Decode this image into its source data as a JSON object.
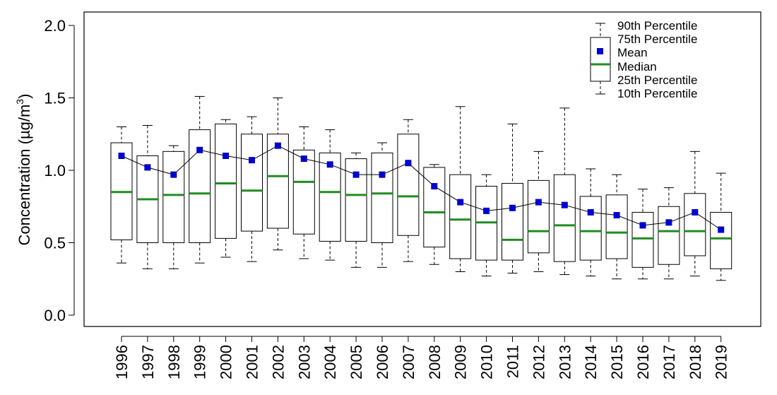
{
  "chart_data": {
    "type": "box",
    "title": "",
    "xlabel": "",
    "ylabel": "Concentration (µg/m³)",
    "ylabel_parts": {
      "main": "Concentration (µg/m",
      "sup": "3",
      "close": ")"
    },
    "ylim": [
      -0.08,
      2.07
    ],
    "yticks": [
      0.0,
      0.5,
      1.0,
      1.5,
      2.0
    ],
    "ytick_labels": [
      "0.0",
      "0.5",
      "1.0",
      "1.5",
      "2.0"
    ],
    "categories": [
      "1996",
      "1997",
      "1998",
      "1999",
      "2000",
      "2001",
      "2002",
      "2003",
      "2004",
      "2005",
      "2006",
      "2007",
      "2008",
      "2009",
      "2010",
      "2011",
      "2012",
      "2013",
      "2014",
      "2015",
      "2016",
      "2017",
      "2018",
      "2019"
    ],
    "p10": [
      0.36,
      0.32,
      0.32,
      0.36,
      0.4,
      0.37,
      0.45,
      0.39,
      0.38,
      0.33,
      0.33,
      0.37,
      0.35,
      0.3,
      0.27,
      0.29,
      0.3,
      0.28,
      0.27,
      0.25,
      0.25,
      0.25,
      0.27,
      0.24
    ],
    "p25": [
      0.52,
      0.5,
      0.5,
      0.5,
      0.53,
      0.58,
      0.6,
      0.56,
      0.51,
      0.51,
      0.5,
      0.55,
      0.47,
      0.39,
      0.38,
      0.38,
      0.43,
      0.37,
      0.38,
      0.39,
      0.33,
      0.35,
      0.41,
      0.32
    ],
    "median": [
      0.85,
      0.8,
      0.83,
      0.84,
      0.91,
      0.86,
      0.96,
      0.92,
      0.85,
      0.83,
      0.84,
      0.82,
      0.71,
      0.66,
      0.64,
      0.52,
      0.58,
      0.62,
      0.58,
      0.57,
      0.53,
      0.58,
      0.58,
      0.53
    ],
    "p75": [
      1.19,
      1.1,
      1.13,
      1.28,
      1.32,
      1.25,
      1.25,
      1.14,
      1.12,
      1.08,
      1.12,
      1.25,
      1.02,
      0.97,
      0.89,
      0.91,
      0.93,
      0.97,
      0.82,
      0.83,
      0.71,
      0.75,
      0.84,
      0.71
    ],
    "p90": [
      1.3,
      1.31,
      1.17,
      1.51,
      1.35,
      1.37,
      1.5,
      1.3,
      1.28,
      1.12,
      1.19,
      1.35,
      1.04,
      1.44,
      0.97,
      1.32,
      1.13,
      1.43,
      1.01,
      0.97,
      0.87,
      0.88,
      1.13,
      0.98
    ],
    "mean": [
      1.1,
      1.02,
      0.97,
      1.14,
      1.1,
      1.07,
      1.17,
      1.08,
      1.04,
      0.97,
      0.97,
      1.05,
      0.89,
      0.78,
      0.72,
      0.74,
      0.78,
      0.76,
      0.71,
      0.69,
      0.62,
      0.64,
      0.71,
      0.59
    ],
    "legend": {
      "position": "top-right",
      "entries": [
        "90th Percentile",
        "75th Percentile",
        "Mean",
        "Median",
        "25th Percentile",
        "10th Percentile"
      ]
    },
    "colors": {
      "median": "#228B22",
      "mean": "#0000CD",
      "line": "#000000",
      "box": "#000000"
    },
    "grid": false
  }
}
